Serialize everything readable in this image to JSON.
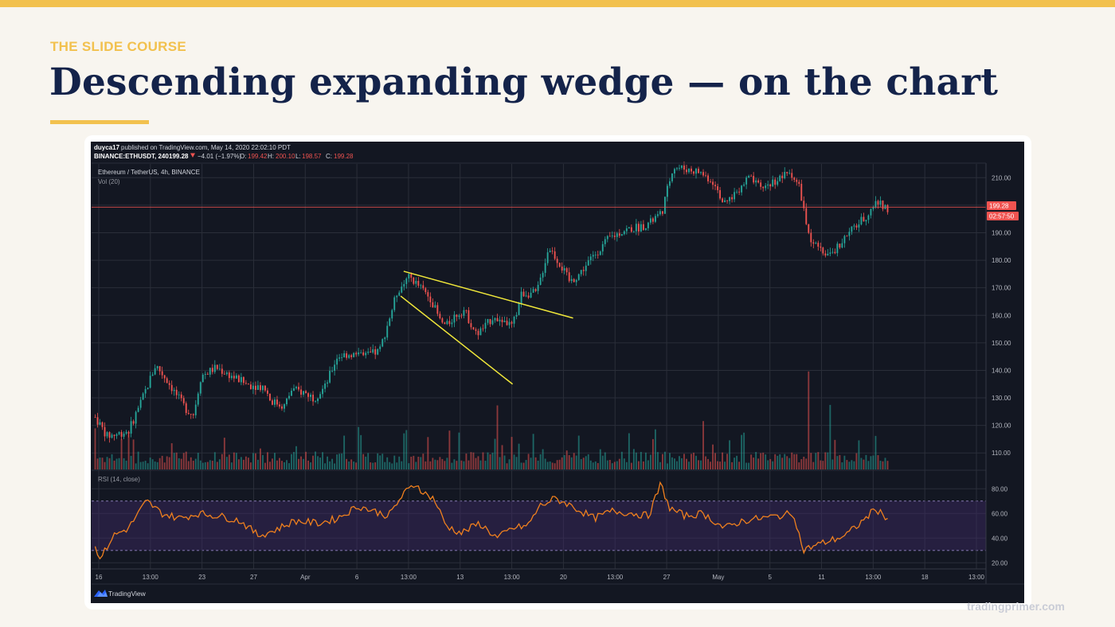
{
  "slide": {
    "course": "THE SLIDE COURSE",
    "title": "Descending expanding wedge — on the chart",
    "credit": "tradingprimer.com"
  },
  "tv": {
    "published_user": "duyca17",
    "published_text": "published on TradingView.com, May 14, 2020 22:02:10 PDT",
    "symbol_line": "BINANCE:ETHUSDT, 240",
    "last_price": "199.28",
    "change": "−4.01 (−1.97%)",
    "o_label": "O:",
    "o_value": "199.42",
    "h_label": "H:",
    "h_value": "200.10",
    "l_label": "L:",
    "l_value": "198.57",
    "c_label": "C:",
    "c_value": "199.28",
    "instrument": "Ethereum / TetherUS, 4h, BINANCE",
    "volume_label": "Vol (20)",
    "rsi_label": "RSI (14, close)",
    "price_tag": "199.28",
    "countdown_tag": "02:57:50",
    "brand": "TradingView",
    "colors": {
      "up": "#26a69a",
      "down": "#ef5350",
      "wedge": "#f1e83a",
      "rsi": "#f0801e",
      "rsi_band": "#3f2a66"
    }
  },
  "chart_data": {
    "type": "candlestick",
    "title": "Ethereum / TetherUS, 4h, BINANCE",
    "price_axis": {
      "ticks": [
        "110.00",
        "120.00",
        "130.00",
        "140.00",
        "150.00",
        "160.00",
        "170.00",
        "180.00",
        "190.00",
        "200.00",
        "210.00"
      ],
      "ylim": [
        104,
        215
      ]
    },
    "rsi_axis": {
      "ticks": [
        "20.00",
        "40.00",
        "60.00",
        "80.00"
      ],
      "ylim": [
        15,
        95
      ],
      "band": [
        30,
        70
      ]
    },
    "x_ticks": [
      "16",
      "13:00",
      "23",
      "27",
      "Apr",
      "6",
      "13:00",
      "13",
      "13:00",
      "20",
      "13:00",
      "27",
      "May",
      "5",
      "11",
      "13:00",
      "18",
      "13:00"
    ],
    "bar_count": 332,
    "price_path": [
      [
        0,
        123
      ],
      [
        8,
        116
      ],
      [
        22,
        118
      ],
      [
        30,
        128
      ],
      [
        40,
        142
      ],
      [
        48,
        136
      ],
      [
        55,
        130
      ],
      [
        60,
        126
      ],
      [
        65,
        124
      ],
      [
        70,
        138
      ],
      [
        80,
        141
      ],
      [
        90,
        138
      ],
      [
        100,
        135
      ],
      [
        112,
        134
      ],
      [
        116,
        129
      ],
      [
        125,
        127
      ],
      [
        130,
        133
      ],
      [
        138,
        132
      ],
      [
        145,
        130
      ],
      [
        152,
        134
      ],
      [
        160,
        145
      ],
      [
        168,
        146
      ],
      [
        178,
        145
      ],
      [
        188,
        147
      ],
      [
        200,
        169
      ],
      [
        208,
        174
      ],
      [
        215,
        170
      ],
      [
        222,
        166
      ],
      [
        228,
        158
      ],
      [
        232,
        156
      ],
      [
        238,
        160
      ],
      [
        244,
        162
      ],
      [
        252,
        153
      ],
      [
        258,
        156
      ],
      [
        264,
        160
      ],
      [
        270,
        158
      ],
      [
        276,
        156
      ],
      [
        282,
        168
      ],
      [
        292,
        168
      ],
      [
        300,
        185
      ],
      [
        308,
        178
      ],
      [
        314,
        172
      ],
      [
        320,
        175
      ],
      [
        330,
        182
      ],
      [
        340,
        188
      ],
      [
        350,
        191
      ],
      [
        360,
        192
      ],
      [
        368,
        194
      ],
      [
        375,
        198
      ],
      [
        382,
        214
      ],
      [
        392,
        213
      ],
      [
        400,
        212
      ],
      [
        410,
        208
      ],
      [
        416,
        200
      ],
      [
        424,
        205
      ],
      [
        432,
        210
      ],
      [
        440,
        206
      ],
      [
        450,
        209
      ],
      [
        460,
        212
      ],
      [
        466,
        206
      ],
      [
        472,
        188
      ],
      [
        480,
        183
      ],
      [
        486,
        182
      ],
      [
        494,
        187
      ],
      [
        502,
        192
      ],
      [
        510,
        196
      ],
      [
        516,
        201
      ],
      [
        524,
        199
      ]
    ],
    "volume": {
      "baseline_level": 0.15,
      "spike_levels": [
        [
          0,
          0.62
        ],
        [
          25,
          0.46
        ],
        [
          175,
          0.6
        ],
        [
          205,
          0.5
        ],
        [
          265,
          0.48
        ],
        [
          280,
          0.46
        ],
        [
          370,
          0.53
        ],
        [
          402,
          0.62
        ],
        [
          428,
          0.52
        ],
        [
          472,
          0.62
        ],
        [
          486,
          0.5
        ],
        [
          516,
          0.46
        ]
      ]
    },
    "rsi_path": [
      [
        0,
        32
      ],
      [
        4,
        24
      ],
      [
        12,
        42
      ],
      [
        22,
        48
      ],
      [
        34,
        70
      ],
      [
        44,
        60
      ],
      [
        56,
        56
      ],
      [
        68,
        60
      ],
      [
        82,
        58
      ],
      [
        96,
        54
      ],
      [
        108,
        42
      ],
      [
        118,
        46
      ],
      [
        132,
        54
      ],
      [
        148,
        52
      ],
      [
        160,
        56
      ],
      [
        174,
        66
      ],
      [
        184,
        62
      ],
      [
        194,
        58
      ],
      [
        204,
        76
      ],
      [
        212,
        84
      ],
      [
        218,
        76
      ],
      [
        224,
        72
      ],
      [
        232,
        50
      ],
      [
        242,
        44
      ],
      [
        254,
        52
      ],
      [
        266,
        40
      ],
      [
        276,
        48
      ],
      [
        286,
        50
      ],
      [
        294,
        66
      ],
      [
        304,
        72
      ],
      [
        312,
        68
      ],
      [
        318,
        64
      ],
      [
        330,
        56
      ],
      [
        342,
        62
      ],
      [
        356,
        60
      ],
      [
        366,
        58
      ],
      [
        374,
        84
      ],
      [
        380,
        64
      ],
      [
        390,
        58
      ],
      [
        402,
        60
      ],
      [
        416,
        48
      ],
      [
        428,
        54
      ],
      [
        440,
        56
      ],
      [
        452,
        58
      ],
      [
        462,
        60
      ],
      [
        468,
        30
      ],
      [
        476,
        34
      ],
      [
        486,
        38
      ],
      [
        496,
        42
      ],
      [
        506,
        52
      ],
      [
        516,
        64
      ],
      [
        524,
        56
      ]
    ],
    "price_line": 199.28,
    "wedge": {
      "upper": [
        [
          204,
          176
        ],
        [
          316,
          159
        ]
      ],
      "lower": [
        [
          202,
          167
        ],
        [
          276,
          135
        ]
      ]
    }
  }
}
